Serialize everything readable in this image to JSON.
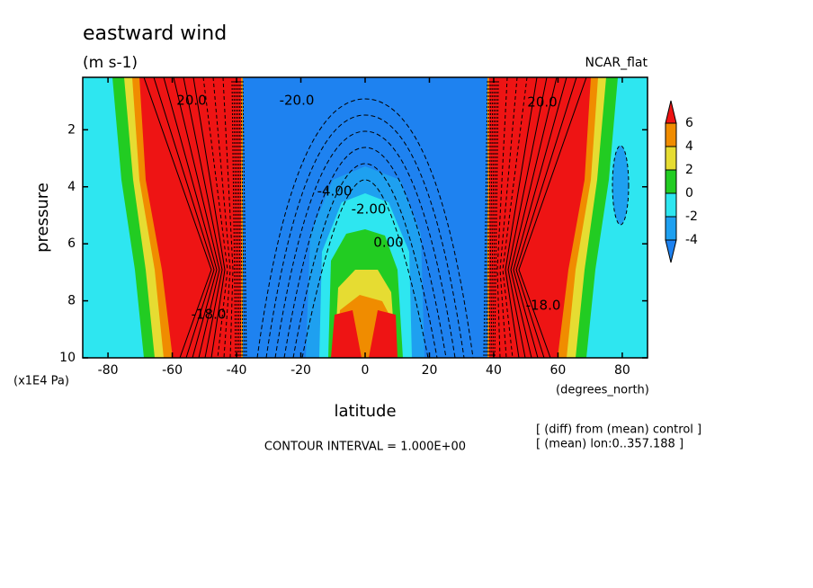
{
  "chart_data": {
    "type": "contour",
    "title": "eastward wind",
    "subtitle": "(m s-1)",
    "top_right_label": "NCAR_flat",
    "x_label": "latitude",
    "x_unit": "(degrees_north)",
    "y_label": "pressure",
    "y_unit": "(x1E4 Pa)",
    "xlim": [
      -87.86,
      87.86
    ],
    "xticks": [
      -80,
      -60,
      -40,
      -20,
      0,
      20,
      40,
      60,
      80
    ],
    "ylim": [
      0.16,
      10
    ],
    "y_reversed": true,
    "yticks": [
      2,
      4,
      6,
      8,
      10
    ],
    "contour_labels": [
      "20.0",
      "-20.0",
      "-4.00",
      "-2.00",
      "0.00",
      "20.0",
      "-18.0",
      "-18.0"
    ],
    "footer": "CONTOUR INTERVAL = 1.000E+00",
    "notes": [
      "[ (diff) from (mean) control ]",
      "[ (mean) lon:0..357.188 ]"
    ],
    "colorbar": {
      "levels": [
        6,
        4,
        2,
        0,
        -2,
        -4
      ],
      "colors": [
        "#ee1414",
        "#f08c00",
        "#e6dc32",
        "#22cc22",
        "#2ee6f0",
        "#1ea0f0",
        "#1e82f0"
      ]
    }
  }
}
